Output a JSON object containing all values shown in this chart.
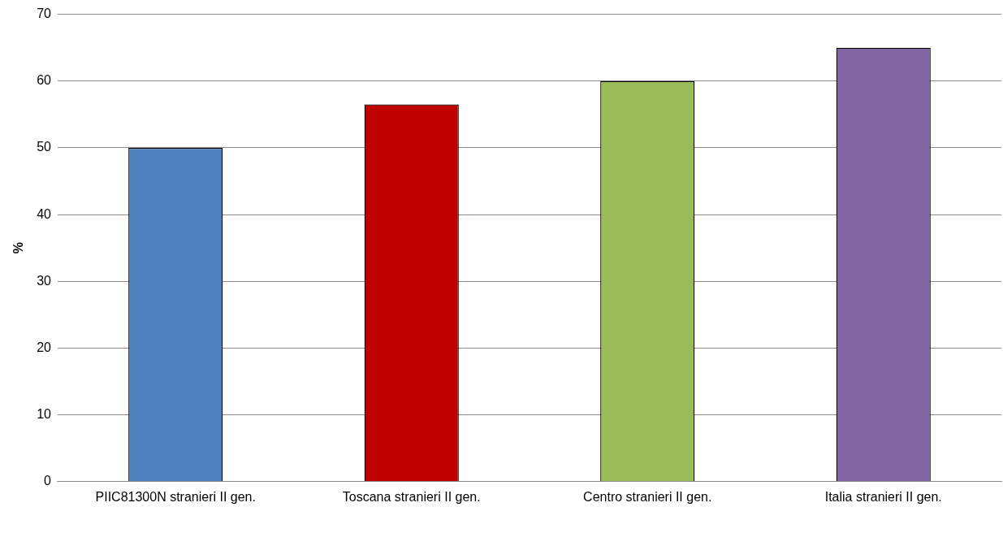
{
  "chart_data": {
    "type": "bar",
    "ylabel": "%",
    "categories": [
      "PIIC81300N stranieri II gen.",
      "Toscana stranieri II gen.",
      "Centro stranieri II gen.",
      "Italia stranieri II gen."
    ],
    "values": [
      50,
      56.5,
      60,
      65
    ],
    "colors": [
      "#4f81bd",
      "#c00000",
      "#9bbb59",
      "#8064a2"
    ],
    "ylim": [
      0,
      70
    ],
    "yticks": [
      0,
      10,
      20,
      30,
      40,
      50,
      60,
      70
    ],
    "grid": "y",
    "legend": false
  }
}
